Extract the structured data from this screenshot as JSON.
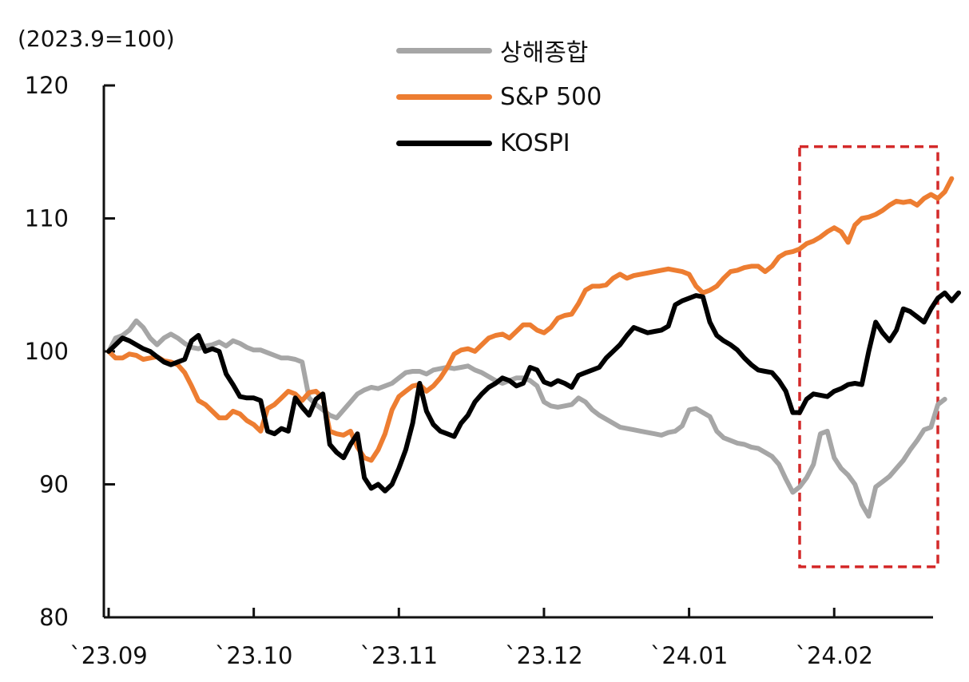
{
  "chart_data": {
    "type": "line",
    "unit_label": "(2023.9=100)",
    "x_tick_labels": [
      "`23.09",
      "`23.10",
      "`23.11",
      "`23.12",
      "`24.01",
      "`24.02"
    ],
    "x_tick_index": [
      0,
      21,
      42,
      63,
      84,
      105
    ],
    "y_ticks": [
      80,
      90,
      100,
      110,
      120
    ],
    "ylim": [
      80,
      120
    ],
    "grid": false,
    "legend_position": "top-center",
    "highlight_box": {
      "x_index_range": [
        100,
        120
      ],
      "y_range": [
        83.8,
        115.4
      ],
      "color": "#d42a2a",
      "style": "dashed"
    },
    "series": [
      {
        "name": "상해종합",
        "color": "#a6a6a6",
        "values": [
          100.0,
          101.0,
          101.2,
          101.6,
          102.3,
          101.8,
          101.0,
          100.5,
          101.0,
          101.3,
          101.0,
          100.6,
          100.3,
          100.2,
          100.4,
          100.5,
          100.7,
          100.4,
          100.8,
          100.6,
          100.3,
          100.1,
          100.1,
          99.9,
          99.7,
          99.5,
          99.5,
          99.4,
          99.2,
          96.5,
          96.0,
          95.6,
          95.2,
          95.0,
          95.6,
          96.2,
          96.8,
          97.1,
          97.3,
          97.2,
          97.4,
          97.6,
          98.0,
          98.4,
          98.5,
          98.5,
          98.3,
          98.6,
          98.7,
          98.8,
          98.7,
          98.8,
          98.9,
          98.6,
          98.4,
          98.1,
          97.8,
          97.6,
          97.8,
          98.0,
          98.0,
          97.8,
          97.4,
          96.2,
          95.9,
          95.8,
          95.9,
          96.0,
          96.5,
          96.2,
          95.6,
          95.2,
          94.9,
          94.6,
          94.3,
          94.2,
          94.1,
          94.0,
          93.9,
          93.8,
          93.7,
          93.9,
          94.0,
          94.4,
          95.6,
          95.7,
          95.4,
          95.1,
          94.0,
          93.5,
          93.3,
          93.1,
          93.0,
          92.8,
          92.7,
          92.4,
          92.1,
          91.5,
          90.4,
          89.4,
          89.8,
          90.5,
          91.5,
          93.8,
          94.0,
          92.0,
          91.2,
          90.7,
          90.0,
          88.5,
          87.6,
          89.8,
          90.2,
          90.6,
          91.2,
          91.8,
          92.6,
          93.3,
          94.1,
          94.3,
          96.0,
          96.4
        ]
      },
      {
        "name": "S&P 500",
        "color": "#ed7d31",
        "values": [
          100.0,
          99.5,
          99.5,
          99.8,
          99.7,
          99.4,
          99.5,
          99.6,
          99.3,
          99.2,
          99.0,
          98.4,
          97.4,
          96.3,
          96.0,
          95.5,
          95.0,
          95.0,
          95.5,
          95.3,
          94.8,
          94.5,
          94.0,
          95.7,
          96.0,
          96.5,
          97.0,
          96.8,
          96.3,
          96.9,
          97.0,
          96.5,
          94.0,
          93.8,
          93.7,
          94.0,
          92.8,
          92.0,
          91.8,
          92.6,
          93.8,
          95.6,
          96.6,
          97.0,
          97.4,
          97.5,
          97.0,
          97.4,
          98.0,
          98.8,
          99.8,
          100.1,
          100.2,
          100.0,
          100.5,
          101.0,
          101.2,
          101.3,
          101.0,
          101.5,
          102.0,
          102.0,
          101.6,
          101.4,
          101.8,
          102.5,
          102.7,
          102.8,
          103.6,
          104.6,
          104.9,
          104.9,
          105.0,
          105.5,
          105.8,
          105.5,
          105.7,
          105.8,
          105.9,
          106.0,
          106.1,
          106.2,
          106.1,
          106.0,
          105.8,
          104.9,
          104.4,
          104.6,
          104.9,
          105.5,
          106.0,
          106.1,
          106.3,
          106.4,
          106.4,
          106.0,
          106.4,
          107.1,
          107.4,
          107.5,
          107.7,
          108.1,
          108.3,
          108.6,
          109.0,
          109.3,
          109.0,
          108.2,
          109.5,
          110.0,
          110.1,
          110.3,
          110.6,
          111.0,
          111.3,
          111.2,
          111.3,
          111.0,
          111.5,
          111.8,
          111.5,
          112.0,
          113.0
        ]
      },
      {
        "name": "KOSPI",
        "color": "#000000",
        "values": [
          100.0,
          100.5,
          101.0,
          100.8,
          100.5,
          100.2,
          100.0,
          99.6,
          99.2,
          99.0,
          99.2,
          99.4,
          100.8,
          101.2,
          100.0,
          100.2,
          100.0,
          98.3,
          97.5,
          96.6,
          96.5,
          96.5,
          96.3,
          94.0,
          93.8,
          94.2,
          94.0,
          96.5,
          95.8,
          95.2,
          96.4,
          96.8,
          93.0,
          92.4,
          92.0,
          93.0,
          93.8,
          90.5,
          89.7,
          90.0,
          89.5,
          90.0,
          91.2,
          92.6,
          94.6,
          97.6,
          95.5,
          94.5,
          94.0,
          93.8,
          93.6,
          94.6,
          95.2,
          96.2,
          96.8,
          97.3,
          97.6,
          98.0,
          97.8,
          97.4,
          97.6,
          98.8,
          98.6,
          97.7,
          97.5,
          97.8,
          97.6,
          97.3,
          98.2,
          98.4,
          98.6,
          98.8,
          99.5,
          100.0,
          100.5,
          101.2,
          101.8,
          101.6,
          101.4,
          101.5,
          101.6,
          101.9,
          103.5,
          103.8,
          104.0,
          104.2,
          104.1,
          102.2,
          101.2,
          100.8,
          100.5,
          100.1,
          99.5,
          99.0,
          98.6,
          98.5,
          98.4,
          97.8,
          97.0,
          95.4,
          95.4,
          96.4,
          96.8,
          96.7,
          96.6,
          97.0,
          97.2,
          97.5,
          97.6,
          97.5,
          100.0,
          102.2,
          101.4,
          100.8,
          101.6,
          103.2,
          103.0,
          102.6,
          102.2,
          103.2,
          104.0,
          104.4,
          103.8,
          104.4
        ]
      }
    ]
  }
}
